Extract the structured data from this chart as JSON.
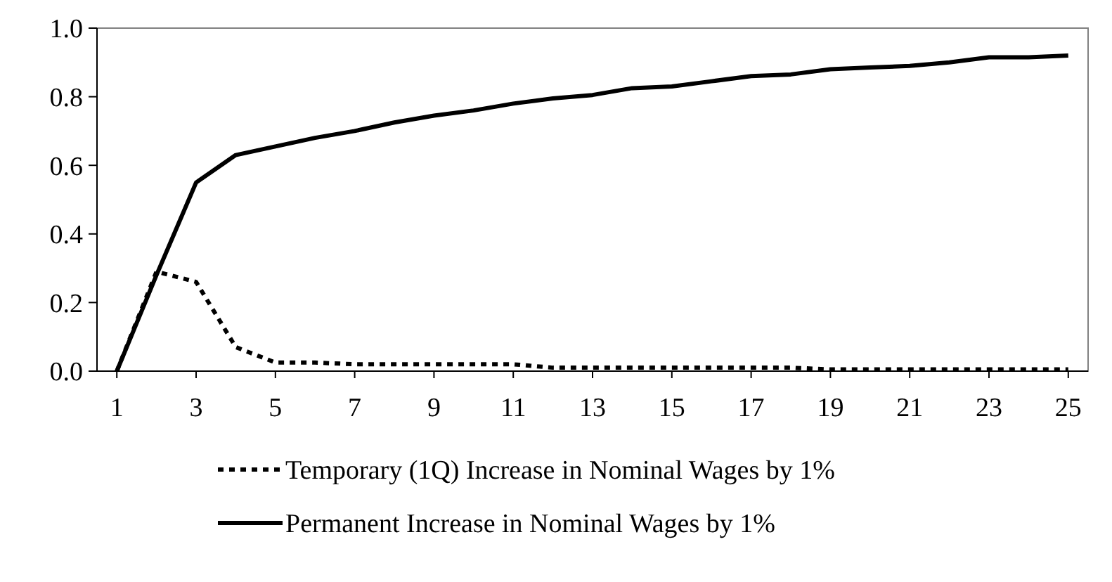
{
  "chart_data": {
    "type": "line",
    "x": [
      1,
      2,
      3,
      4,
      5,
      6,
      7,
      8,
      9,
      10,
      11,
      12,
      13,
      14,
      15,
      16,
      17,
      18,
      19,
      20,
      21,
      22,
      23,
      24,
      25
    ],
    "series": [
      {
        "name": "Temporary (1Q) Increase in Nominal Wages by 1%",
        "color": "#000000",
        "line_style": "dotted",
        "values": [
          0,
          0.29,
          0.26,
          0.07,
          0.025,
          0.025,
          0.02,
          0.02,
          0.02,
          0.02,
          0.02,
          0.01,
          0.01,
          0.01,
          0.01,
          0.01,
          0.01,
          0.01,
          0.005,
          0.005,
          0.005,
          0.005,
          0.005,
          0.005,
          0.005
        ]
      },
      {
        "name": "Permanent Increase in Nominal Wages by 1%",
        "color": "#000000",
        "line_style": "solid",
        "values": [
          0,
          0.28,
          0.55,
          0.63,
          0.655,
          0.68,
          0.7,
          0.725,
          0.745,
          0.76,
          0.78,
          0.795,
          0.805,
          0.825,
          0.83,
          0.845,
          0.86,
          0.865,
          0.88,
          0.885,
          0.89,
          0.9,
          0.915,
          0.915,
          0.92
        ]
      }
    ],
    "xlim": [
      0.5,
      25.5
    ],
    "xticks": [
      1,
      3,
      5,
      7,
      9,
      11,
      13,
      15,
      17,
      19,
      21,
      23,
      25
    ],
    "ylim": [
      0,
      1
    ],
    "yticks": [
      {
        "value": 0,
        "label": "0.0"
      },
      {
        "value": 0.2,
        "label": "0.2"
      },
      {
        "value": 0.4,
        "label": "0.4"
      },
      {
        "value": 0.6,
        "label": "0.6"
      },
      {
        "value": 0.8,
        "label": "0.8"
      },
      {
        "value": 1,
        "label": "1.0"
      }
    ],
    "grid": false,
    "legend": "bottom",
    "marker": "none"
  }
}
